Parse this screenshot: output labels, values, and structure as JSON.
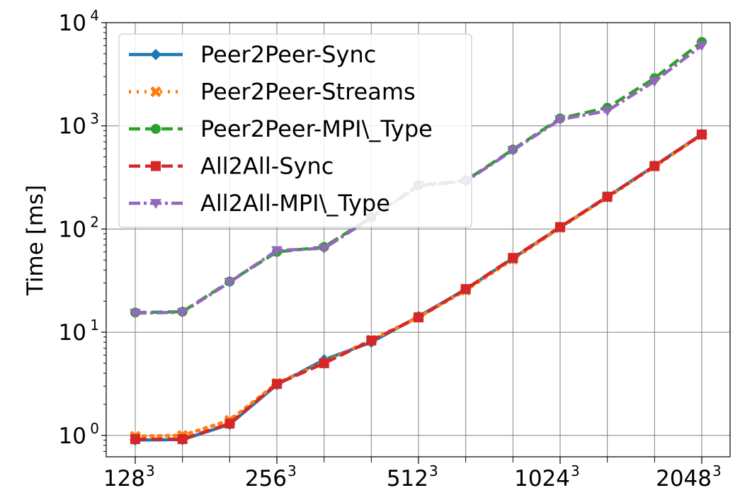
{
  "chart_data": {
    "type": "line",
    "title": "",
    "xlabel": "",
    "ylabel": "Time [ms]",
    "y_scale": "log",
    "ylim": [
      0.62,
      10000
    ],
    "grid": true,
    "legend_position": "top-left",
    "x_index": [
      0,
      1,
      2,
      3,
      4,
      5,
      6,
      7,
      8,
      9,
      10,
      11,
      12
    ],
    "x_ticks": [
      {
        "index": 0,
        "base": "128",
        "exp": "3"
      },
      {
        "index": 3,
        "base": "256",
        "exp": "3"
      },
      {
        "index": 6,
        "base": "512",
        "exp": "3"
      },
      {
        "index": 9,
        "base": "1024",
        "exp": "3"
      },
      {
        "index": 12,
        "base": "2048",
        "exp": "3"
      }
    ],
    "y_ticks": [
      {
        "value": 1,
        "base": "10",
        "exp": "0"
      },
      {
        "value": 10,
        "base": "10",
        "exp": "1"
      },
      {
        "value": 100,
        "base": "10",
        "exp": "2"
      },
      {
        "value": 1000,
        "base": "10",
        "exp": "3"
      },
      {
        "value": 10000,
        "base": "10",
        "exp": "4"
      }
    ],
    "series": [
      {
        "name": "Peer2Peer-Sync",
        "color": "#1f77b4",
        "dash": "solid",
        "marker": "diamond",
        "values": [
          0.9,
          0.91,
          1.28,
          3.1,
          5.4,
          8.0,
          14.2,
          26.0,
          52.0,
          104.0,
          205.0,
          410.0,
          830.0
        ]
      },
      {
        "name": "Peer2Peer-Streams",
        "color": "#ff7f0e",
        "dash": "dotted",
        "marker": "x",
        "values": [
          0.98,
          1.0,
          1.4,
          3.2,
          5.1,
          8.4,
          14.0,
          25.5,
          51.0,
          103.0,
          203.0,
          405.0,
          820.0
        ]
      },
      {
        "name": "Peer2Peer-MPI\\_Type",
        "color": "#2ca02c",
        "dash": "dashed",
        "marker": "circle",
        "values": [
          15.5,
          15.8,
          31.0,
          60.0,
          67.0,
          130.0,
          265.0,
          295.0,
          590.0,
          1180.0,
          1500.0,
          2900.0,
          6500.0
        ]
      },
      {
        "name": "All2All-Sync",
        "color": "#d62728",
        "dash": "dashed",
        "marker": "square",
        "values": [
          0.92,
          0.92,
          1.3,
          3.15,
          5.0,
          8.3,
          13.9,
          26.2,
          52.5,
          104.5,
          206.0,
          408.0,
          825.0
        ]
      },
      {
        "name": "All2All-MPI\\_Type",
        "color": "#9467bd",
        "dash": "dashdot",
        "marker": "triangle-down",
        "values": [
          15.3,
          15.6,
          30.5,
          62.0,
          65.0,
          128.0,
          262.0,
          290.0,
          580.0,
          1150.0,
          1400.0,
          2700.0,
          6000.0
        ]
      }
    ]
  }
}
